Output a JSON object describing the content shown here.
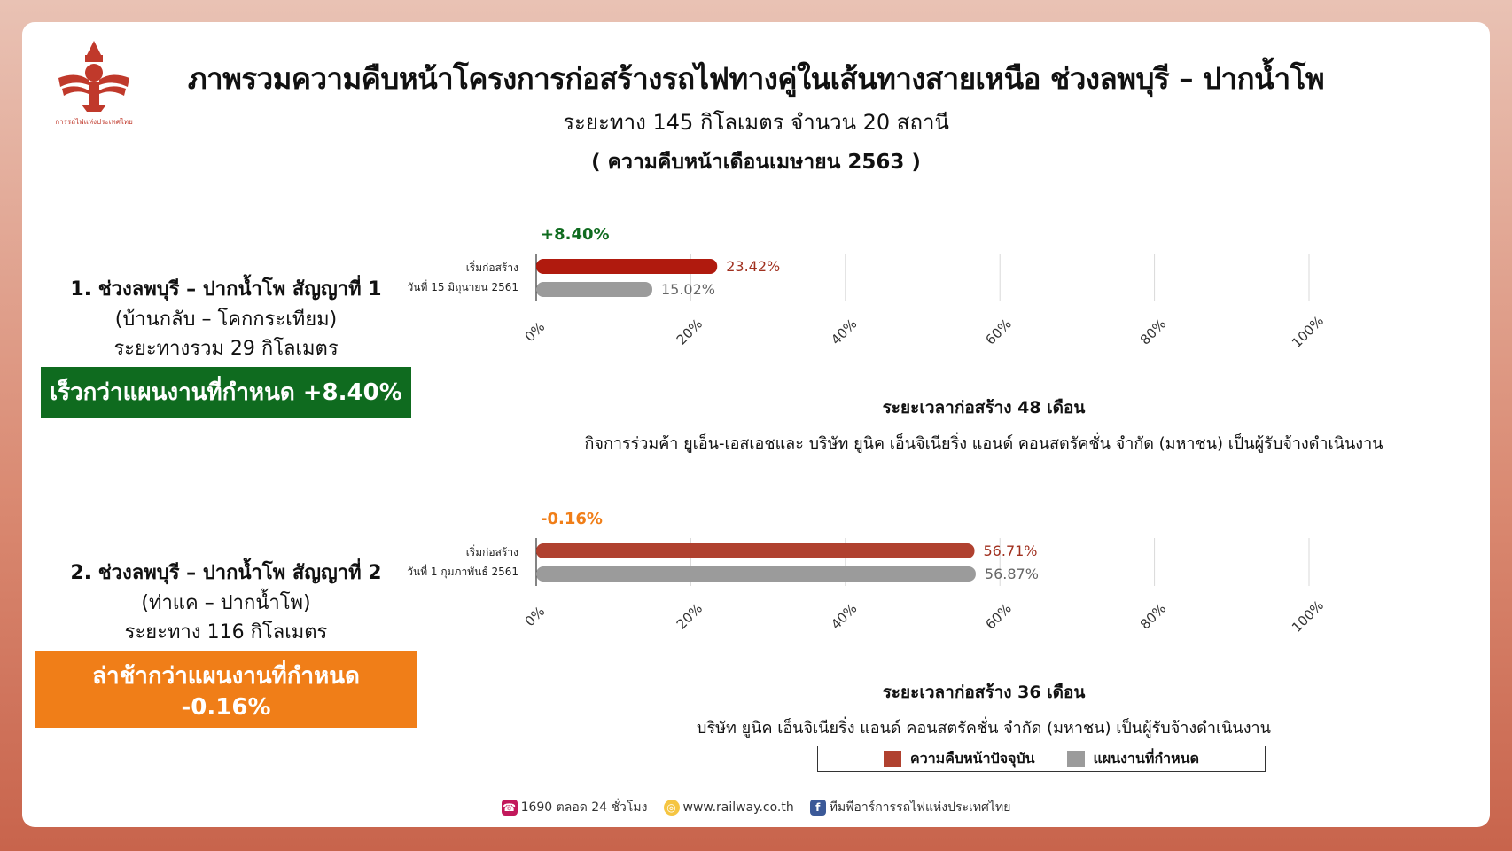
{
  "header": {
    "title": "ภาพรวมความคืบหน้าโครงการก่อสร้างรถไฟทางคู่ในเส้นทางสายเหนือ ช่วงลพบุรี – ปากน้ำโพ",
    "subtitle": "ระยะทาง 145 กิโลเมตร จำนวน 20 สถานี",
    "period": "( ความคืบหน้าเดือนเมษายน 2563 )"
  },
  "colors": {
    "actual": "#b0412f",
    "plan": "#9b9b9b",
    "ahead": "#0f6b1f",
    "behind": "#f07e18"
  },
  "projects": [
    {
      "name": "1. ช่วงลพบุรี – ปากน้ำโพ สัญญาที่ 1",
      "route": "(บ้านกลับ – โคกกระเทียม)",
      "distance": "ระยะทางรวม 29 กิโลเมตร",
      "status": "เร็วกว่าแผนงานที่กำหนด +8.40%",
      "diff": "+8.40%",
      "start_line1": "เริ่มก่อสร้าง",
      "start_line2": "วันที่ 15 มิถุนายน 2561",
      "duration": "ระยะเวลาก่อสร้าง 48 เดือน",
      "contractor": "กิจการร่วมค้า ยูเอ็น-เอสเอชและ บริษัท ยูนิค เอ็นจิเนียริ่ง แอนด์ คอนสตรัคชั่น จำกัด (มหาชน) เป็นผู้รับจ้างดำเนินงาน"
    },
    {
      "name": "2. ช่วงลพบุรี – ปากน้ำโพ สัญญาที่ 2",
      "route": "(ท่าแค – ปากน้ำโพ)",
      "distance": "ระยะทาง 116 กิโลเมตร",
      "status": "ล่าช้ากว่าแผนงานที่กำหนด -0.16%",
      "diff": "-0.16%",
      "start_line1": "เริ่มก่อสร้าง",
      "start_line2": "วันที่ 1 กุมภาพันธ์ 2561",
      "duration": "ระยะเวลาก่อสร้าง 36 เดือน",
      "contractor": "บริษัท ยูนิค เอ็นจิเนียริ่ง แอนด์ คอนสตรัคชั่น จำกัด (มหาชน) เป็นผู้รับจ้างดำเนินงาน"
    }
  ],
  "legend": {
    "actual": "ความคืบหน้าปัจจุบัน",
    "plan": "แผนงานที่กำหนด"
  },
  "footer": {
    "phone": "1690 ตลอด 24 ชั่วโมง",
    "web": "www.railway.co.th",
    "fb": "ทีมพีอาร์การรถไฟแห่งประเทศไทย"
  },
  "chart_data": [
    {
      "type": "bar",
      "orientation": "horizontal",
      "categories": [
        "ความคืบหน้าปัจจุบัน",
        "แผนงานที่กำหนด"
      ],
      "values": [
        23.42,
        15.02
      ],
      "value_labels": [
        "23.42%",
        "15.02%"
      ],
      "xlim": [
        0,
        100
      ],
      "ticks": [
        "0%",
        "20%",
        "40%",
        "60%",
        "80%",
        "100%"
      ],
      "annotation": "+8.40%",
      "grid": true
    },
    {
      "type": "bar",
      "orientation": "horizontal",
      "categories": [
        "ความคืบหน้าปัจจุบัน",
        "แผนงานที่กำหนด"
      ],
      "values": [
        56.71,
        56.87
      ],
      "value_labels": [
        "56.71%",
        "56.87%"
      ],
      "xlim": [
        0,
        100
      ],
      "ticks": [
        "0%",
        "20%",
        "40%",
        "60%",
        "80%",
        "100%"
      ],
      "annotation": "-0.16%",
      "grid": true
    }
  ]
}
